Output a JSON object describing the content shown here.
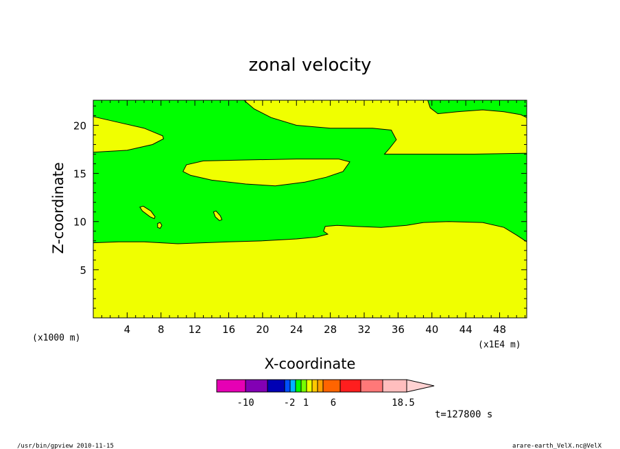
{
  "chart_data": {
    "type": "heatmap",
    "title": "zonal velocity",
    "xlabel": "X-coordinate",
    "ylabel": "Z-coordinate",
    "x_unit_left": "(x1000 m)",
    "x_unit_right": "(x1E4 m)",
    "xlim": [
      0,
      51.2
    ],
    "ylim": [
      0,
      22.6
    ],
    "x_ticks": [
      4,
      8,
      12,
      16,
      20,
      24,
      28,
      32,
      36,
      40,
      44,
      48
    ],
    "y_ticks": [
      5,
      10,
      15,
      20
    ],
    "field_classes": [
      {
        "name": "positive (yellow band)",
        "color": "#f0ff00"
      },
      {
        "name": "near zero (green band)",
        "color": "#00ff00"
      }
    ],
    "regions": [
      {
        "fill": "#f0ff00",
        "label": "lower layer",
        "points": [
          [
            0,
            0
          ],
          [
            51.2,
            0
          ],
          [
            51.2,
            7.9
          ],
          [
            50,
            8.6
          ],
          [
            48.5,
            9.4
          ],
          [
            46,
            9.9
          ],
          [
            42,
            10.0
          ],
          [
            39,
            9.9
          ],
          [
            37,
            9.6
          ],
          [
            34,
            9.4
          ],
          [
            31,
            9.5
          ],
          [
            28.8,
            9.6
          ],
          [
            27.4,
            9.5
          ],
          [
            27.2,
            9.0
          ],
          [
            27.7,
            8.7
          ],
          [
            26.4,
            8.4
          ],
          [
            24,
            8.2
          ],
          [
            20,
            8.0
          ],
          [
            16,
            7.9
          ],
          [
            10,
            7.7
          ],
          [
            6,
            7.9
          ],
          [
            3,
            7.9
          ],
          [
            0,
            7.8
          ]
        ]
      },
      {
        "fill": "#f0ff00",
        "label": "upper-left lobe",
        "points": [
          [
            0,
            20.9
          ],
          [
            3,
            20.3
          ],
          [
            6,
            19.7
          ],
          [
            8.2,
            18.9
          ],
          [
            8.3,
            18.6
          ],
          [
            7,
            18.0
          ],
          [
            4,
            17.4
          ],
          [
            0,
            17.2
          ]
        ]
      },
      {
        "fill": "#f0ff00",
        "label": "central lens",
        "points": [
          [
            10.6,
            15.2
          ],
          [
            11,
            15.9
          ],
          [
            13,
            16.3
          ],
          [
            18,
            16.4
          ],
          [
            24,
            16.5
          ],
          [
            29,
            16.5
          ],
          [
            30.3,
            16.2
          ],
          [
            29.5,
            15.2
          ],
          [
            27.5,
            14.6
          ],
          [
            25,
            14.1
          ],
          [
            21.5,
            13.7
          ],
          [
            18,
            13.9
          ],
          [
            14,
            14.3
          ],
          [
            11.5,
            14.8
          ]
        ]
      },
      {
        "fill": "#f0ff00",
        "label": "upper-right region",
        "points": [
          [
            17.8,
            22.6
          ],
          [
            39.5,
            22.6
          ],
          [
            39.8,
            21.8
          ],
          [
            40.7,
            21.2
          ],
          [
            43,
            21.4
          ],
          [
            46,
            21.6
          ],
          [
            48.5,
            21.4
          ],
          [
            50.5,
            21.1
          ],
          [
            51.2,
            20.8
          ],
          [
            51.2,
            17.1
          ],
          [
            45,
            17.0
          ],
          [
            40,
            17.0
          ],
          [
            36,
            17.0
          ],
          [
            34.4,
            17.0
          ],
          [
            35,
            17.6
          ],
          [
            35.8,
            18.5
          ],
          [
            35.2,
            19.5
          ],
          [
            33,
            19.7
          ],
          [
            28,
            19.7
          ],
          [
            24,
            20.0
          ],
          [
            21,
            20.8
          ],
          [
            19,
            21.7
          ]
        ]
      },
      {
        "fill": "#f0ff00",
        "label": "small streak A",
        "points": [
          [
            5.5,
            11.5
          ],
          [
            5.9,
            11.6
          ],
          [
            6.8,
            11.1
          ],
          [
            7.3,
            10.5
          ],
          [
            7.2,
            10.3
          ],
          [
            6.7,
            10.5
          ],
          [
            5.8,
            11.1
          ]
        ]
      },
      {
        "fill": "#f0ff00",
        "label": "small streak B",
        "points": [
          [
            14.2,
            11.0
          ],
          [
            14.5,
            11.1
          ],
          [
            15.0,
            10.6
          ],
          [
            15.2,
            10.2
          ],
          [
            14.9,
            10.1
          ],
          [
            14.4,
            10.5
          ]
        ]
      },
      {
        "fill": "#f0ff00",
        "label": "small dot",
        "points": [
          [
            7.6,
            9.8
          ],
          [
            7.9,
            9.9
          ],
          [
            8.1,
            9.6
          ],
          [
            7.9,
            9.3
          ],
          [
            7.6,
            9.4
          ]
        ]
      }
    ],
    "colorbar": {
      "colors": [
        "#e600b4",
        "#8200b4",
        "#0000b4",
        "#0050ff",
        "#00b4ff",
        "#00ff00",
        "#78ff00",
        "#f0ff00",
        "#ffc800",
        "#ffa000",
        "#ff6400",
        "#ff1e1e",
        "#ff7878",
        "#ffbebe",
        "#ffd2d2"
      ],
      "labels": [
        "-10",
        "-2",
        "1",
        "6",
        "18.5"
      ]
    },
    "time_label": "t=127800 s",
    "grid": false,
    "legend": "colorbar at bottom"
  },
  "footer": {
    "left": "/usr/bin/gpview   2010-11-15",
    "right": "arare-earth_VelX.nc@VelX"
  }
}
